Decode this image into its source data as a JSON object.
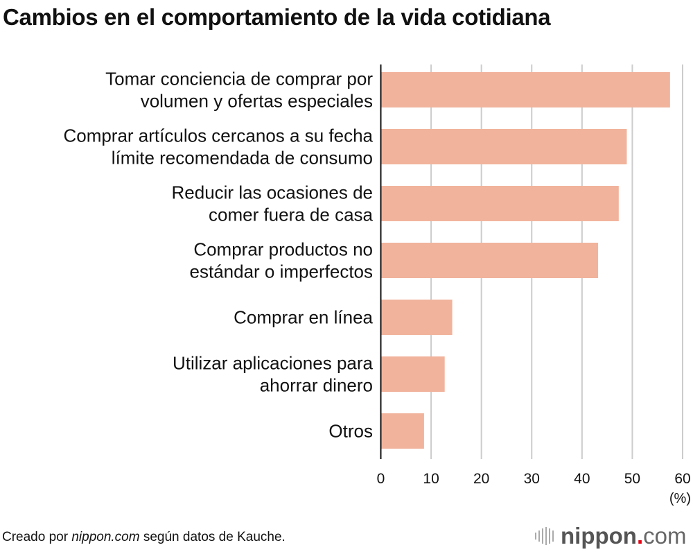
{
  "chart_data": {
    "type": "bar",
    "orientation": "horizontal",
    "title": "Cambios en el comportamiento de la vida cotidiana",
    "categories": [
      [
        "Tomar conciencia de comprar por",
        "volumen y ofertas especiales"
      ],
      [
        "Comprar artículos cercanos a su fecha",
        "límite recomendada de consumo"
      ],
      [
        "Reducir las ocasiones de",
        "comer fuera de casa"
      ],
      [
        "Comprar productos no",
        "estándar o imperfectos"
      ],
      [
        "Comprar en línea"
      ],
      [
        "Utilizar aplicaciones para",
        "ahorrar dinero"
      ],
      [
        "Otros"
      ]
    ],
    "values": [
      57.5,
      48.9,
      47.3,
      43.2,
      14.2,
      12.7,
      8.6
    ],
    "xlim": [
      0,
      60
    ],
    "xticks": [
      "0",
      "10",
      "20",
      "30",
      "40",
      "50",
      "60"
    ],
    "xlabel": "(%)",
    "grid": true,
    "bar_color": "#f1b39c",
    "grid_color": "#cccccc"
  },
  "footer": {
    "source_prefix": "Creado por ",
    "source_site": "nippon.com",
    "source_suffix": " según datos de Kauche.",
    "logo": "nippon.com"
  }
}
